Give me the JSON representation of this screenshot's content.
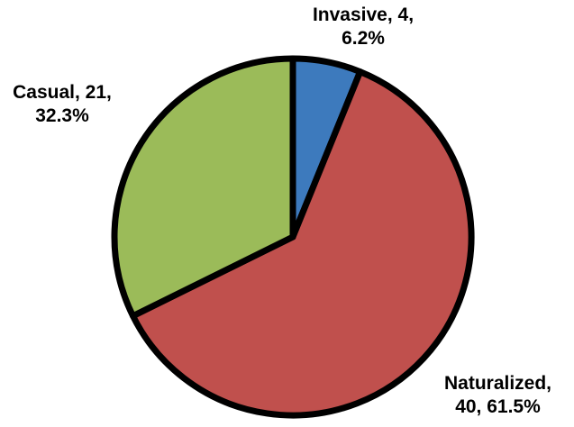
{
  "chart_data": {
    "type": "pie",
    "title": "",
    "categories": [
      "Invasive",
      "Naturalized",
      "Casual"
    ],
    "values": [
      4,
      40,
      21
    ],
    "percentages": [
      6.2,
      61.5,
      32.3
    ],
    "colors": [
      "#3d7abd",
      "#c0504d",
      "#9bbb59"
    ],
    "stroke_color": "#000000",
    "stroke_width": 7,
    "start_angle_deg": 0,
    "direction": "clockwise",
    "legend": "none",
    "labels": [
      {
        "for": "Invasive",
        "lines": [
          "Invasive, 4,",
          "6.2%"
        ]
      },
      {
        "for": "Naturalized",
        "lines": [
          "Naturalized,",
          "40, 61.5%"
        ]
      },
      {
        "for": "Casual",
        "lines": [
          "Casual, 21,",
          "32.3%"
        ]
      }
    ]
  }
}
